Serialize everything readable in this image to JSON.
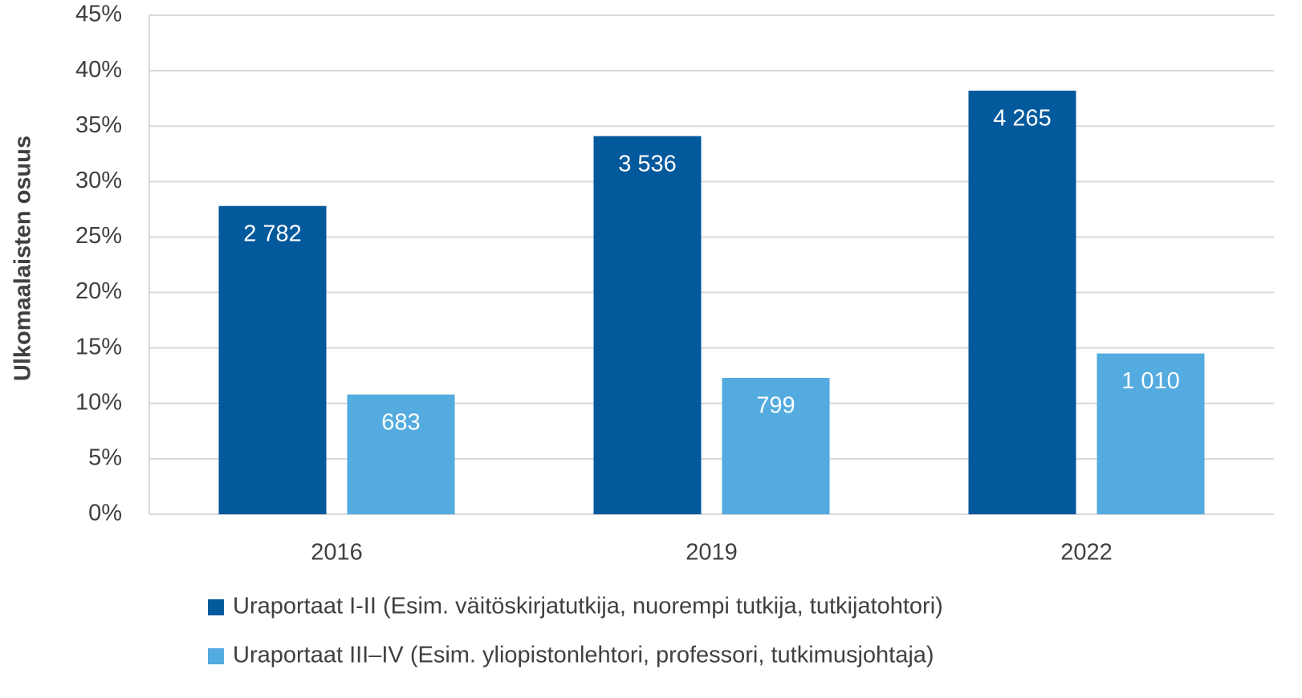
{
  "chart_data": {
    "type": "bar",
    "y_label": "Ulkomaalaisten osuus",
    "categories": [
      "2016",
      "2019",
      "2022"
    ],
    "series": [
      {
        "name": "Uraportaat I-II (Esim. väitöskirjatutkija, nuorempi tutkija, tutkijatohtori)",
        "color": "#02599c",
        "values": [
          27.8,
          34.1,
          38.2
        ],
        "data_labels": [
          "2 782",
          "3 536",
          "4 265"
        ]
      },
      {
        "name": "Uraportaat III–IV (Esim. yliopistonlehtori, professori, tutkimusjohtaja)",
        "color": "#53abdf",
        "values": [
          10.8,
          12.3,
          14.5
        ],
        "data_labels": [
          "683",
          "799",
          "1 010"
        ]
      }
    ],
    "ylim": [
      0,
      45
    ],
    "yticks": [
      {
        "value": 0,
        "label": "0%"
      },
      {
        "value": 5,
        "label": "5%"
      },
      {
        "value": 10,
        "label": "10%"
      },
      {
        "value": 15,
        "label": "15%"
      },
      {
        "value": 20,
        "label": "20%"
      },
      {
        "value": 25,
        "label": "25%"
      },
      {
        "value": 30,
        "label": "30%"
      },
      {
        "value": 35,
        "label": "35%"
      },
      {
        "value": 40,
        "label": "40%"
      },
      {
        "value": 45,
        "label": "45%"
      }
    ],
    "grid": true
  }
}
